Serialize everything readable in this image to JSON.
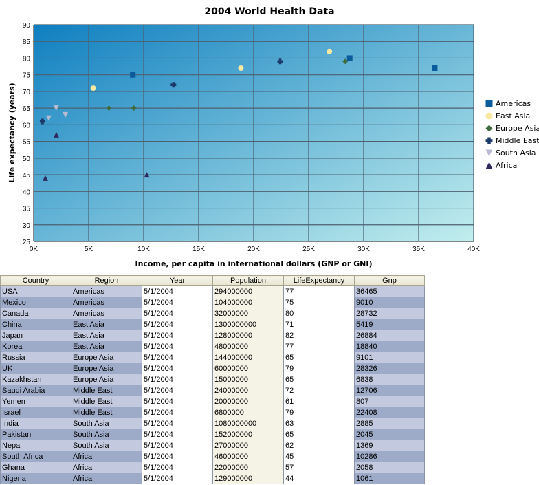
{
  "chart_data": {
    "type": "scatter",
    "title": "2004 World Health Data",
    "xlabel": "Income, per capita in international dollars (GNP or GNI)",
    "ylabel": "Life expectancy (years)",
    "xlim": [
      0,
      40000
    ],
    "ylim": [
      25,
      90
    ],
    "x_ticks": [
      "0K",
      "5K",
      "10K",
      "15K",
      "20K",
      "25K",
      "30K",
      "35K",
      "40K"
    ],
    "y_ticks": [
      "25",
      "30",
      "35",
      "40",
      "45",
      "50",
      "55",
      "60",
      "65",
      "70",
      "75",
      "80",
      "85",
      "90"
    ],
    "grid": true,
    "legend_position": "right",
    "series": [
      {
        "name": "Americas",
        "marker": "square",
        "color": "#0a5b9c",
        "points": [
          [
            36465,
            77
          ],
          [
            9010,
            75
          ],
          [
            28732,
            80
          ]
        ]
      },
      {
        "name": "East Asia",
        "marker": "circle",
        "color": "#f7e8a2",
        "points": [
          [
            5419,
            71
          ],
          [
            26884,
            82
          ],
          [
            18840,
            77
          ]
        ]
      },
      {
        "name": "Europe Asia",
        "marker": "diamond",
        "color": "#3f6b3f",
        "points": [
          [
            9101,
            65
          ],
          [
            28326,
            79
          ],
          [
            6838,
            65
          ]
        ]
      },
      {
        "name": "Middle East",
        "marker": "plus",
        "color": "#1b3a6b",
        "points": [
          [
            12706,
            72
          ],
          [
            807,
            61
          ],
          [
            22408,
            79
          ]
        ]
      },
      {
        "name": "South Asia",
        "marker": "triangle-down",
        "color": "#b9bcd0",
        "points": [
          [
            2885,
            63
          ],
          [
            2045,
            65
          ],
          [
            1369,
            62
          ]
        ]
      },
      {
        "name": "Africa",
        "marker": "triangle-up",
        "color": "#2e2a5e",
        "points": [
          [
            10286,
            45
          ],
          [
            2058,
            57
          ],
          [
            1061,
            44
          ]
        ]
      }
    ]
  },
  "table": {
    "headers": [
      "Country",
      "Region",
      "Year",
      "Population",
      "LifeExpectancy",
      "Gnp"
    ],
    "rows": [
      [
        "USA",
        "Americas",
        "5/1/2004",
        "294000000",
        "77",
        "36465"
      ],
      [
        "Mexico",
        "Americas",
        "5/1/2004",
        "104000000",
        "75",
        "9010"
      ],
      [
        "Canada",
        "Americas",
        "5/1/2004",
        "32000000",
        "80",
        "28732"
      ],
      [
        "China",
        "East Asia",
        "5/1/2004",
        "1300000000",
        "71",
        "5419"
      ],
      [
        "Japan",
        "East Asia",
        "5/1/2004",
        "128000000",
        "82",
        "26884"
      ],
      [
        "Korea",
        "East Asia",
        "5/1/2004",
        "48000000",
        "77",
        "18840"
      ],
      [
        "Russia",
        "Europe Asia",
        "5/1/2004",
        "144000000",
        "65",
        "9101"
      ],
      [
        "UK",
        "Europe Asia",
        "5/1/2004",
        "60000000",
        "79",
        "28326"
      ],
      [
        "Kazakhstan",
        "Europe Asia",
        "5/1/2004",
        "15000000",
        "65",
        "6838"
      ],
      [
        "Saudi Arabia",
        "Middle East",
        "5/1/2004",
        "24000000",
        "72",
        "12706"
      ],
      [
        "Yemen",
        "Middle East",
        "5/1/2004",
        "20000000",
        "61",
        "807"
      ],
      [
        "Israel",
        "Middle East",
        "5/1/2004",
        "6800000",
        "79",
        "22408"
      ],
      [
        "India",
        "South Asia",
        "5/1/2004",
        "1080000000",
        "63",
        "2885"
      ],
      [
        "Pakistan",
        "South Asia",
        "5/1/2004",
        "152000000",
        "65",
        "2045"
      ],
      [
        "Nepal",
        "South Asia",
        "5/1/2004",
        "27000000",
        "62",
        "1369"
      ],
      [
        "South Africa",
        "Africa",
        "5/1/2004",
        "46000000",
        "45",
        "10286"
      ],
      [
        "Ghana",
        "Africa",
        "5/1/2004",
        "22000000",
        "57",
        "2058"
      ],
      [
        "Nigeria",
        "Africa",
        "5/1/2004",
        "129000000",
        "44",
        "1061"
      ]
    ]
  }
}
